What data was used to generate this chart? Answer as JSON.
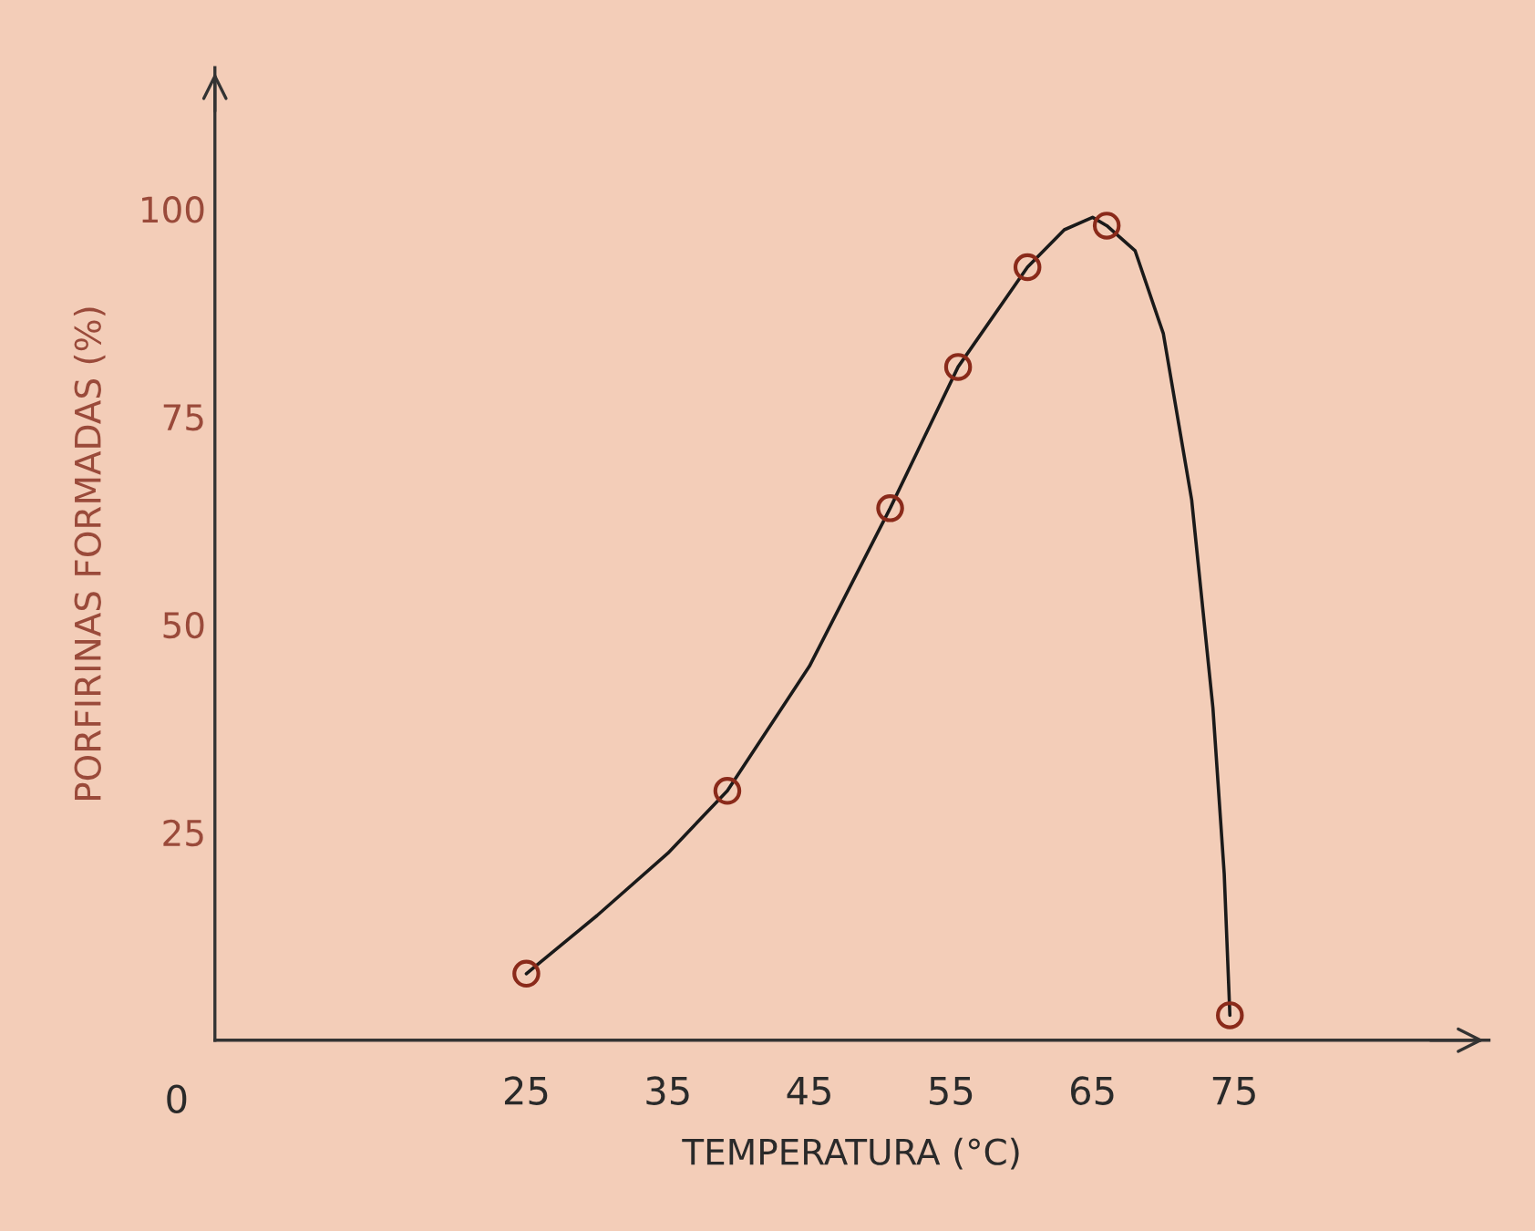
{
  "chart_data": {
    "type": "line",
    "xlabel": "TEMPERATURA (°C)",
    "ylabel": "PORFIRINAS FORMADAS (%)",
    "series": [
      {
        "color": "#1a1a1a",
        "marker": "none",
        "line_style": "solid",
        "x": [
          25,
          30,
          35,
          39.2,
          45,
          50.7,
          55.5,
          60.4,
          63,
          65,
          66,
          68,
          70,
          72,
          73.5,
          74.3,
          74.7
        ],
        "values": [
          8,
          15,
          22.5,
          30,
          45,
          64,
          81,
          93,
          97.5,
          99,
          98,
          95,
          85,
          65,
          40,
          20,
          3
        ]
      },
      {
        "type": "scatter",
        "color": "#8a2a1a",
        "marker": "circle",
        "x": [
          25,
          39.2,
          50.7,
          55.5,
          60.4,
          66,
          74.7
        ],
        "values": [
          8,
          30,
          64,
          81,
          93,
          98,
          3
        ]
      }
    ],
    "annotations": [
      "0"
    ],
    "xlim": [
      3,
      93
    ],
    "xticks": [
      25,
      35,
      45,
      55,
      65,
      75
    ],
    "ylim": [
      0,
      117
    ],
    "yticks": [
      25,
      50,
      75,
      100
    ],
    "grid": false,
    "legend": false
  }
}
